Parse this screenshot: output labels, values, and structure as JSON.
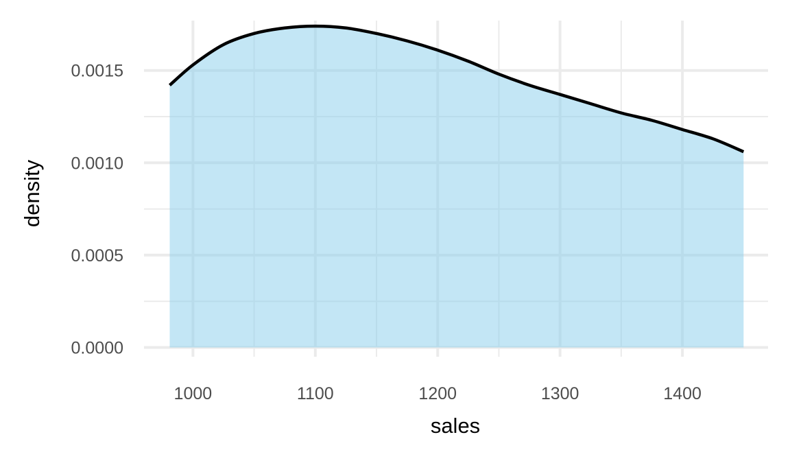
{
  "chart_data": {
    "type": "area",
    "title": "",
    "xlabel": "sales",
    "ylabel": "density",
    "xlim": [
      960,
      1470
    ],
    "ylim": [
      -5e-05,
      0.00177
    ],
    "x_ticks": [
      1000,
      1100,
      1200,
      1300,
      1400
    ],
    "x_tick_labels": [
      "1000",
      "1100",
      "1200",
      "1300",
      "1400"
    ],
    "x_minor_ticks": [
      1050,
      1150,
      1250,
      1350
    ],
    "y_ticks": [
      0.0,
      0.0005,
      0.001,
      0.0015
    ],
    "y_tick_labels": [
      "0.0000",
      "0.0005",
      "0.0010",
      "0.0015"
    ],
    "y_minor_ticks": [
      0.00025,
      0.00075,
      0.00125
    ],
    "grid": true,
    "legend": "none",
    "colors": {
      "fill": "#87ceeb",
      "fill_opacity": 0.5,
      "line": "#000000",
      "grid": "#ebebeb"
    },
    "series": [
      {
        "x": [
          981,
          1000,
          1025,
          1050,
          1075,
          1100,
          1125,
          1150,
          1175,
          1200,
          1225,
          1250,
          1275,
          1300,
          1325,
          1350,
          1375,
          1400,
          1425,
          1450
        ],
        "y": [
          0.00142,
          0.00153,
          0.00164,
          0.0017,
          0.00173,
          0.00174,
          0.00173,
          0.0017,
          0.00166,
          0.00161,
          0.00155,
          0.00148,
          0.00142,
          0.00137,
          0.00132,
          0.00127,
          0.00123,
          0.00118,
          0.00113,
          0.00106
        ]
      }
    ]
  }
}
